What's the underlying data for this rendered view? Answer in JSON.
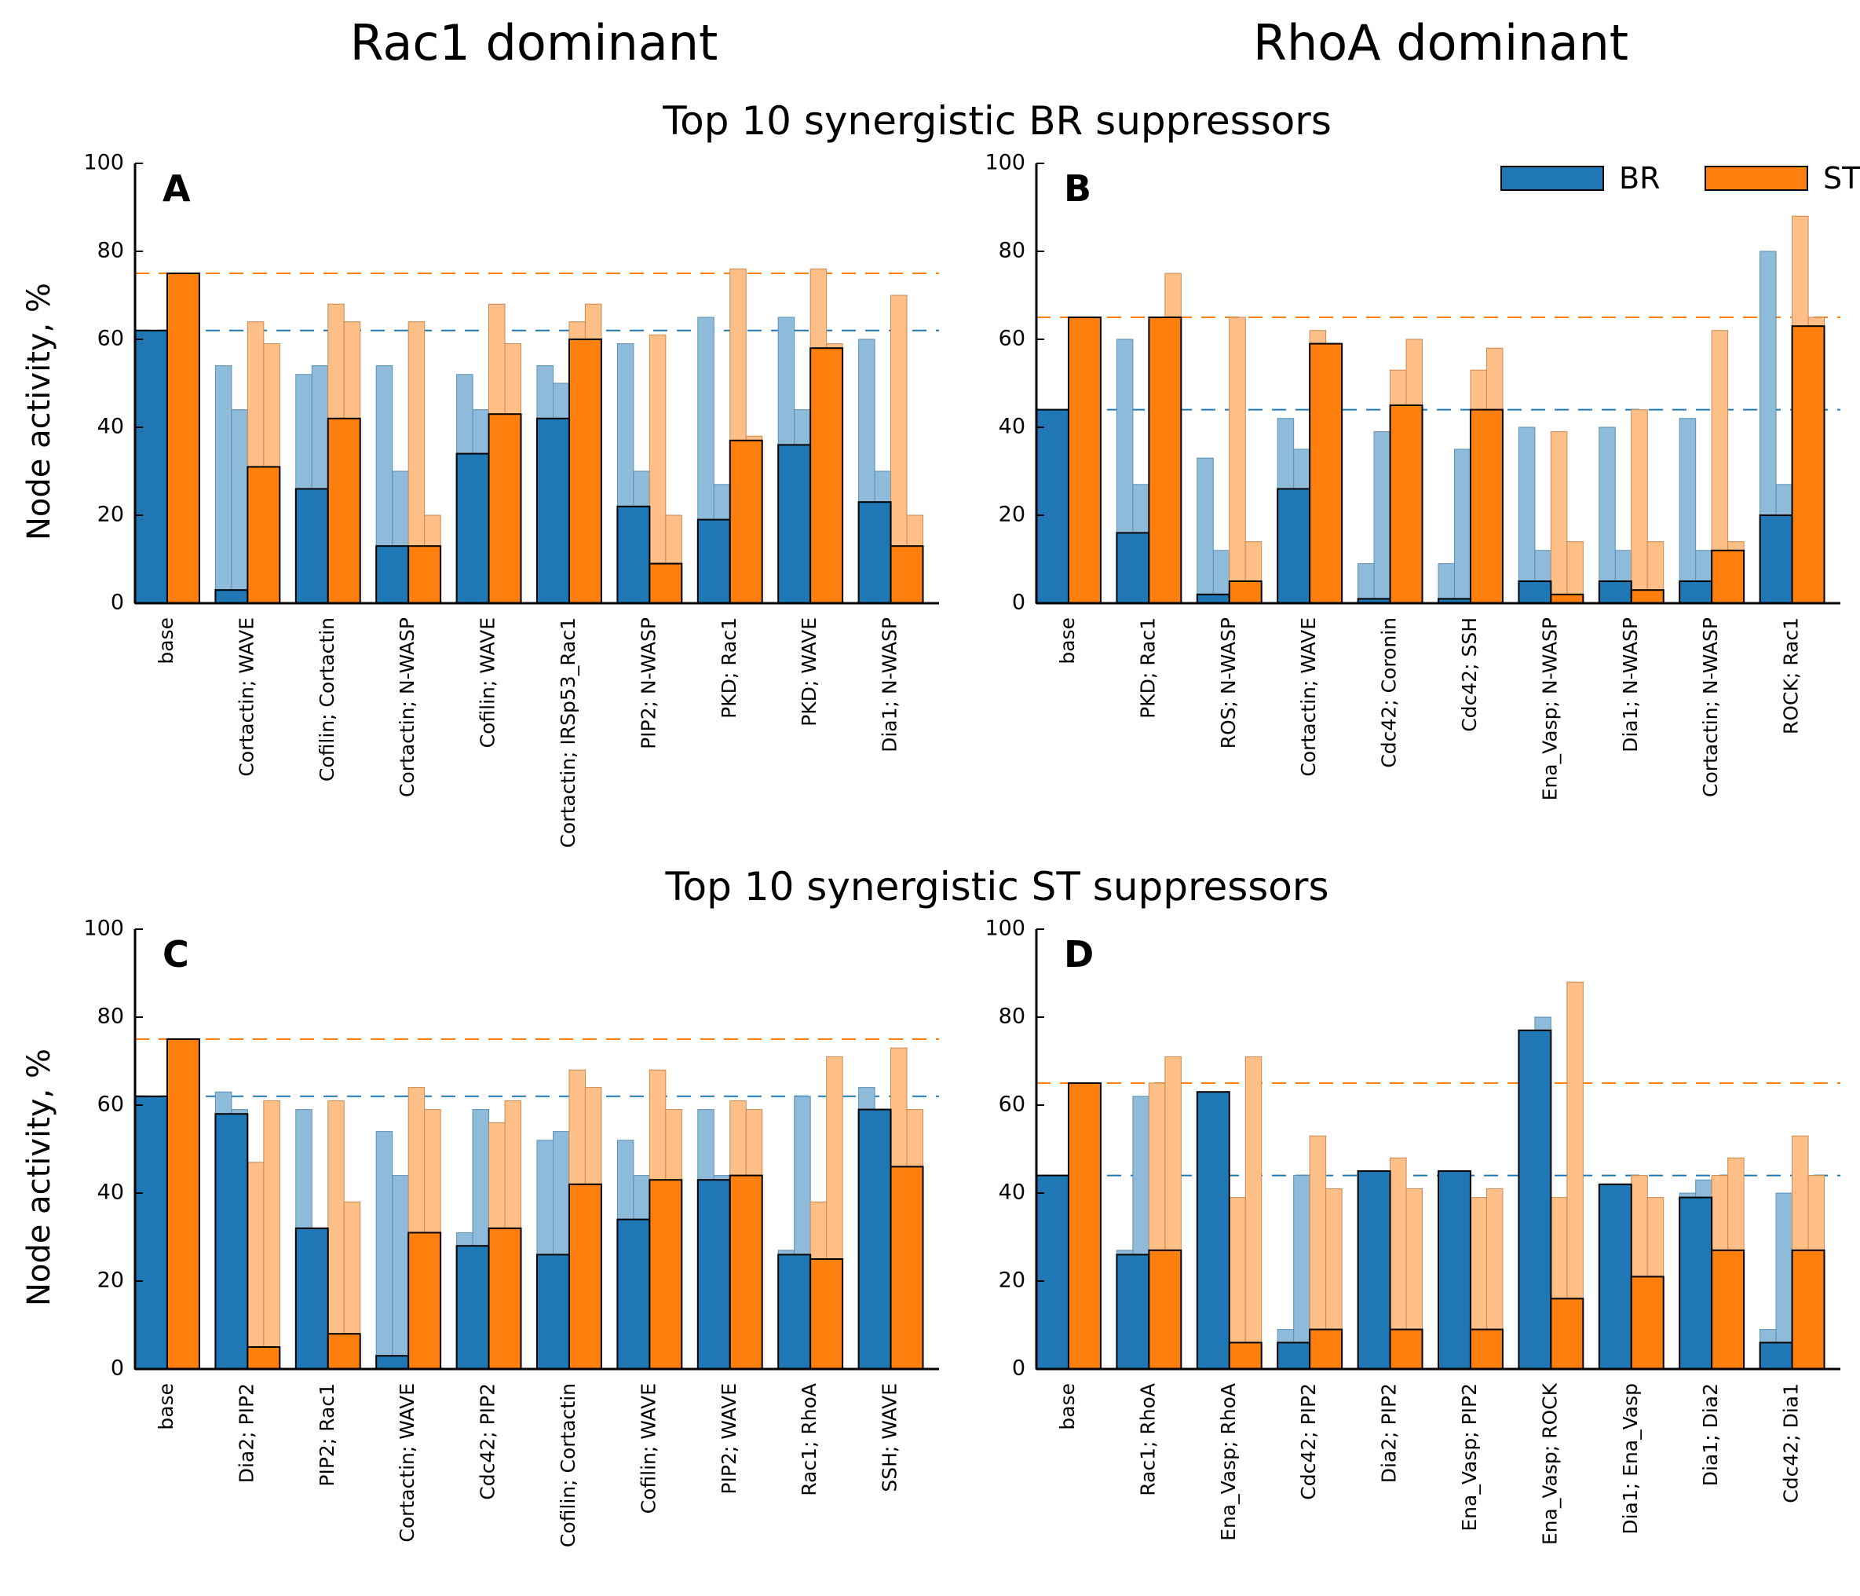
{
  "col_titles": [
    "Rac1 dominant",
    "RhoA dominant"
  ],
  "row_titles": [
    "Top 10 synergistic BR suppressors",
    "Top 10 synergistic ST suppressors"
  ],
  "ylabel": "Node activity, %",
  "colors": {
    "BR": "#1f77b4",
    "ST": "#ff7f0e",
    "BR_light": "#8fbbdb",
    "ST_light": "#ffbf86"
  },
  "chart_data": [
    {
      "type": "bar",
      "panel": "A",
      "ylabel": "Node activity, %",
      "ylim": [
        0,
        100
      ],
      "yticks": [
        0,
        20,
        40,
        60,
        80,
        100
      ],
      "baseline_BR": 62,
      "baseline_ST": 75,
      "categories": [
        "base",
        "Cortactin; WAVE",
        "Cofilin; Cortactin",
        "Cortactin; N-WASP",
        "Cofilin; WAVE",
        "Cortactin; IRSp53_Rac1",
        "PIP2; N-WASP",
        "PKD; Rac1",
        "PKD; WAVE",
        "Dia1; N-WASP"
      ],
      "series": [
        {
          "name": "BR",
          "values": [
            62,
            3,
            26,
            13,
            34,
            42,
            22,
            19,
            36,
            23
          ]
        },
        {
          "name": "ST",
          "values": [
            75,
            31,
            42,
            13,
            43,
            60,
            9,
            37,
            58,
            13
          ]
        }
      ],
      "single_BR": [
        null,
        [
          54,
          44
        ],
        [
          52,
          54
        ],
        [
          54,
          30
        ],
        [
          52,
          44
        ],
        [
          54,
          50
        ],
        [
          59,
          30
        ],
        [
          65,
          27
        ],
        [
          65,
          44
        ],
        [
          60,
          30
        ]
      ],
      "single_ST": [
        null,
        [
          64,
          59
        ],
        [
          68,
          64
        ],
        [
          64,
          20
        ],
        [
          68,
          59
        ],
        [
          64,
          68
        ],
        [
          61,
          20
        ],
        [
          76,
          38
        ],
        [
          76,
          59
        ],
        [
          70,
          20
        ]
      ]
    },
    {
      "type": "bar",
      "panel": "B",
      "ylim": [
        0,
        100
      ],
      "yticks": [
        0,
        20,
        40,
        60,
        80,
        100
      ],
      "baseline_BR": 44,
      "baseline_ST": 65,
      "legend": {
        "entries": [
          "BR",
          "ST"
        ],
        "position": "top-right"
      },
      "categories": [
        "base",
        "PKD; Rac1",
        "ROS; N-WASP",
        "Cortactin; WAVE",
        "Cdc42; Coronin",
        "Cdc42; SSH",
        "Ena_Vasp; N-WASP",
        "Dia1; N-WASP",
        "Cortactin; N-WASP",
        "ROCK; Rac1"
      ],
      "series": [
        {
          "name": "BR",
          "values": [
            44,
            16,
            2,
            26,
            1,
            1,
            5,
            5,
            5,
            20
          ]
        },
        {
          "name": "ST",
          "values": [
            65,
            65,
            5,
            59,
            45,
            44,
            2,
            3,
            12,
            63
          ]
        }
      ],
      "single_BR": [
        null,
        [
          60,
          27
        ],
        [
          33,
          12
        ],
        [
          42,
          35
        ],
        [
          9,
          39
        ],
        [
          9,
          35
        ],
        [
          40,
          12
        ],
        [
          40,
          12
        ],
        [
          42,
          12
        ],
        [
          80,
          27
        ]
      ],
      "single_ST": [
        null,
        [
          65,
          75
        ],
        [
          65,
          14
        ],
        [
          62,
          59
        ],
        [
          53,
          60
        ],
        [
          53,
          58
        ],
        [
          39,
          14
        ],
        [
          44,
          14
        ],
        [
          62,
          14
        ],
        [
          88,
          65
        ]
      ]
    },
    {
      "type": "bar",
      "panel": "C",
      "ylabel": "Node activity, %",
      "ylim": [
        0,
        100
      ],
      "yticks": [
        0,
        20,
        40,
        60,
        80,
        100
      ],
      "baseline_BR": 62,
      "baseline_ST": 75,
      "categories": [
        "base",
        "Dia2; PIP2",
        "PIP2; Rac1",
        "Cortactin; WAVE",
        "Cdc42; PIP2",
        "Cofilin; Cortactin",
        "Cofilin; WAVE",
        "PIP2; WAVE",
        "Rac1; RhoA",
        "SSH; WAVE"
      ],
      "series": [
        {
          "name": "BR",
          "values": [
            62,
            58,
            32,
            3,
            28,
            26,
            34,
            43,
            26,
            59
          ]
        },
        {
          "name": "ST",
          "values": [
            75,
            5,
            8,
            31,
            32,
            42,
            43,
            44,
            25,
            46
          ]
        }
      ],
      "single_BR": [
        null,
        [
          63,
          59
        ],
        [
          59,
          32
        ],
        [
          54,
          44
        ],
        [
          31,
          59
        ],
        [
          52,
          54
        ],
        [
          52,
          44
        ],
        [
          59,
          44
        ],
        [
          27,
          62
        ],
        [
          64,
          59
        ]
      ],
      "single_ST": [
        null,
        [
          47,
          61
        ],
        [
          61,
          38
        ],
        [
          64,
          59
        ],
        [
          56,
          61
        ],
        [
          68,
          64
        ],
        [
          68,
          59
        ],
        [
          61,
          59
        ],
        [
          38,
          71
        ],
        [
          73,
          59
        ]
      ]
    },
    {
      "type": "bar",
      "panel": "D",
      "ylim": [
        0,
        100
      ],
      "yticks": [
        0,
        20,
        40,
        60,
        80,
        100
      ],
      "baseline_BR": 44,
      "baseline_ST": 65,
      "categories": [
        "base",
        "Rac1; RhoA",
        "Ena_Vasp; RhoA",
        "Cdc42; PIP2",
        "Dia2; PIP2",
        "Ena_Vasp; PIP2",
        "Ena_Vasp; ROCK",
        "Dia1; Ena_Vasp",
        "Dia1; Dia2",
        "Cdc42; Dia1"
      ],
      "series": [
        {
          "name": "BR",
          "values": [
            44,
            26,
            63,
            6,
            45,
            45,
            77,
            42,
            39,
            6
          ]
        },
        {
          "name": "ST",
          "values": [
            65,
            27,
            6,
            9,
            9,
            9,
            16,
            21,
            27,
            27
          ]
        }
      ],
      "single_BR": [
        null,
        [
          27,
          62
        ],
        [
          40,
          63
        ],
        [
          9,
          44
        ],
        [
          44,
          45
        ],
        [
          40,
          45
        ],
        [
          40,
          80
        ],
        [
          40,
          41
        ],
        [
          40,
          43
        ],
        [
          9,
          40
        ]
      ],
      "single_ST": [
        null,
        [
          65,
          71
        ],
        [
          39,
          71
        ],
        [
          53,
          41
        ],
        [
          48,
          41
        ],
        [
          39,
          41
        ],
        [
          39,
          88
        ],
        [
          44,
          39
        ],
        [
          44,
          48
        ],
        [
          53,
          44
        ]
      ]
    }
  ]
}
